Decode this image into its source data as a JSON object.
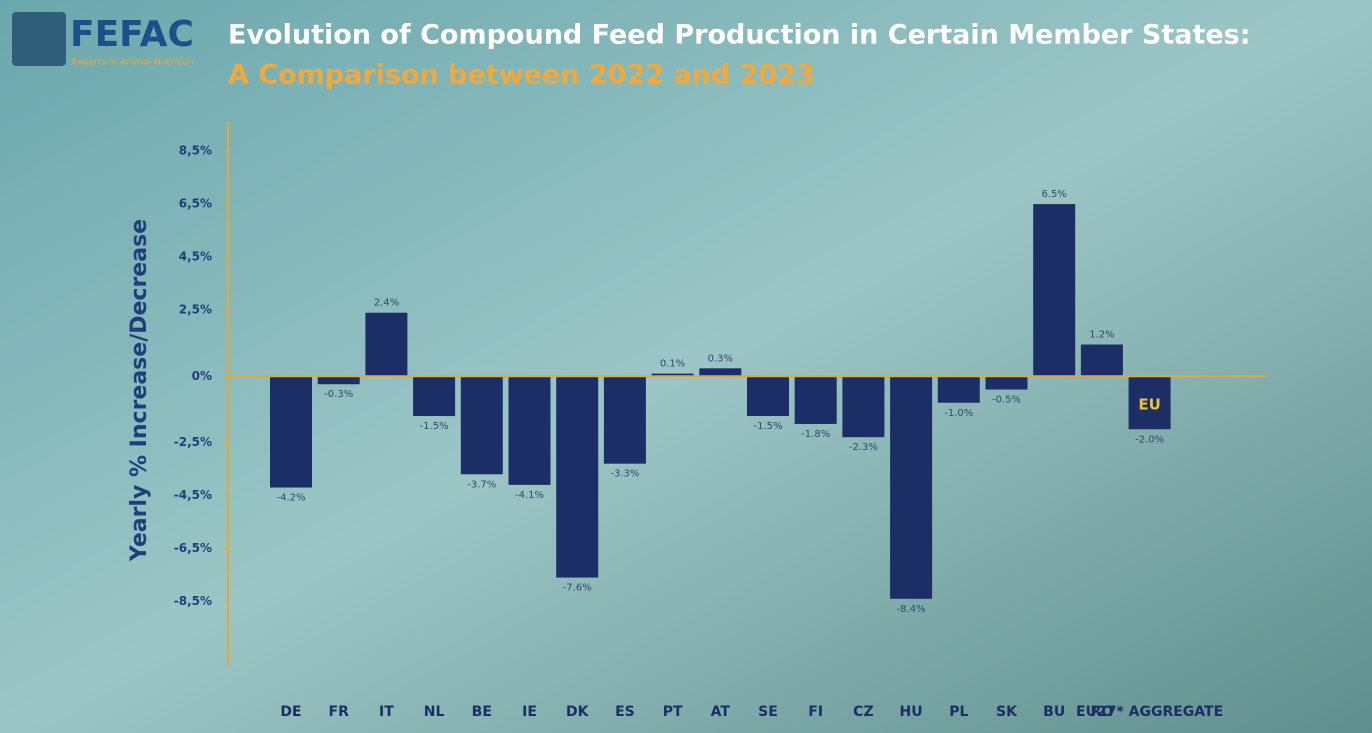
{
  "logo": {
    "name": "FEFAC",
    "tagline": "Experts in Animal Nutrition"
  },
  "chart_data": {
    "type": "bar",
    "title": "Evolution of Compound Feed Production in Certain Member States:",
    "subtitle": "A Comparison between 2022 and 2023",
    "y_label": "Yearly % Increase/Decrease",
    "categories": [
      "DE",
      "FR",
      "IT",
      "NL",
      "BE",
      "IE",
      "DK",
      "ES",
      "PT",
      "AT",
      "SE",
      "FI",
      "CZ",
      "HU",
      "PL",
      "SK",
      "BU",
      "RO",
      "EU27* AGGREGATE"
    ],
    "values": [
      -4.2,
      -0.3,
      2.4,
      -1.5,
      -3.7,
      -4.1,
      -7.6,
      -3.3,
      0.1,
      0.3,
      -1.5,
      -1.8,
      -2.3,
      -8.4,
      -1.0,
      -0.5,
      6.5,
      1.2,
      -2.0
    ],
    "value_labels": [
      "-4.2%",
      "-0.3%",
      "2.4%",
      "-1.5%",
      "-3.7%",
      "-4.1%",
      "-7.6%",
      "-3.3%",
      "0.1%",
      "0.3%",
      "-1.5%",
      "-1.8%",
      "-2.3%",
      "-8.4%",
      "-1.0%",
      "-0.5%",
      "6.5%",
      "1.2%",
      "-2.0%"
    ],
    "eu_badge": "EU",
    "color": "#1b2f66",
    "ylim": [
      -10.9,
      9.6
    ],
    "yticks": [
      {
        "value": 8.5,
        "label": "8,5%"
      },
      {
        "value": 6.5,
        "label": "6,5%"
      },
      {
        "value": 4.5,
        "label": "4,5%"
      },
      {
        "value": 2.5,
        "label": "2,5%"
      },
      {
        "value": 0,
        "label": "0%"
      },
      {
        "value": -2.5,
        "label": "-2,5%"
      },
      {
        "value": -4.5,
        "label": "-4,5%"
      },
      {
        "value": -6.5,
        "label": "-6,5%"
      },
      {
        "value": -8.5,
        "label": "-8,5%"
      }
    ],
    "grid": false
  }
}
